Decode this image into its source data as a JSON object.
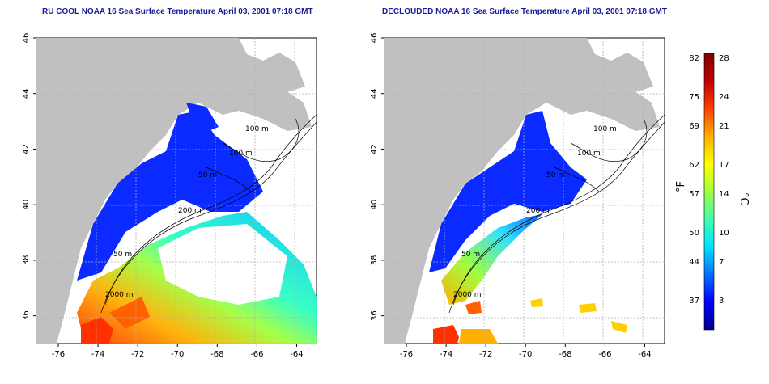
{
  "panels": [
    {
      "id": "left",
      "title": "RU COOL NOAA 16 Sea Surface Temperature April 03, 2001 07:18 GMT"
    },
    {
      "id": "right",
      "title": "DECLOUDED NOAA 16 Sea Surface Temperature April 03, 2001 07:18 GMT"
    }
  ],
  "axes": {
    "x_ticks": [
      "-76",
      "-74",
      "-72",
      "-70",
      "-68",
      "-66",
      "-64"
    ],
    "x_tick_values": [
      -76,
      -74,
      -72,
      -70,
      -68,
      -66,
      -64
    ],
    "y_ticks": [
      "36",
      "38",
      "40",
      "42",
      "44",
      "46"
    ],
    "y_tick_values": [
      36,
      38,
      40,
      42,
      44,
      46
    ],
    "lon_range": [
      -77.1,
      -63
    ],
    "lat_range": [
      35,
      46
    ]
  },
  "contour_labels": [
    "100 m",
    "100 m",
    "50 m",
    "200 m",
    "50 m",
    "2000 m"
  ],
  "colorbar": {
    "fahrenheit_label": "°F",
    "celsius_label": "°C",
    "fahrenheit_ticks": [
      "82",
      "75",
      "69",
      "62",
      "57",
      "50",
      "44",
      "37"
    ],
    "celsius_ticks": [
      "28",
      "24",
      "21",
      "17",
      "14",
      "10",
      "7",
      "3"
    ],
    "celsius_tick_values": [
      28,
      24,
      21,
      17,
      14,
      10,
      7,
      3
    ],
    "range_c": [
      0,
      28.5
    ],
    "colors": [
      "#00008f",
      "#0000ff",
      "#0070ff",
      "#00e0ff",
      "#40ffb0",
      "#a0ff40",
      "#ffff00",
      "#ffb000",
      "#ff4000",
      "#c00000",
      "#800000"
    ]
  },
  "colors": {
    "land": "#c0c0c0",
    "water_no_data": "#ffffff",
    "grid": "#b0b0b0",
    "title": "#1a1a9c"
  }
}
